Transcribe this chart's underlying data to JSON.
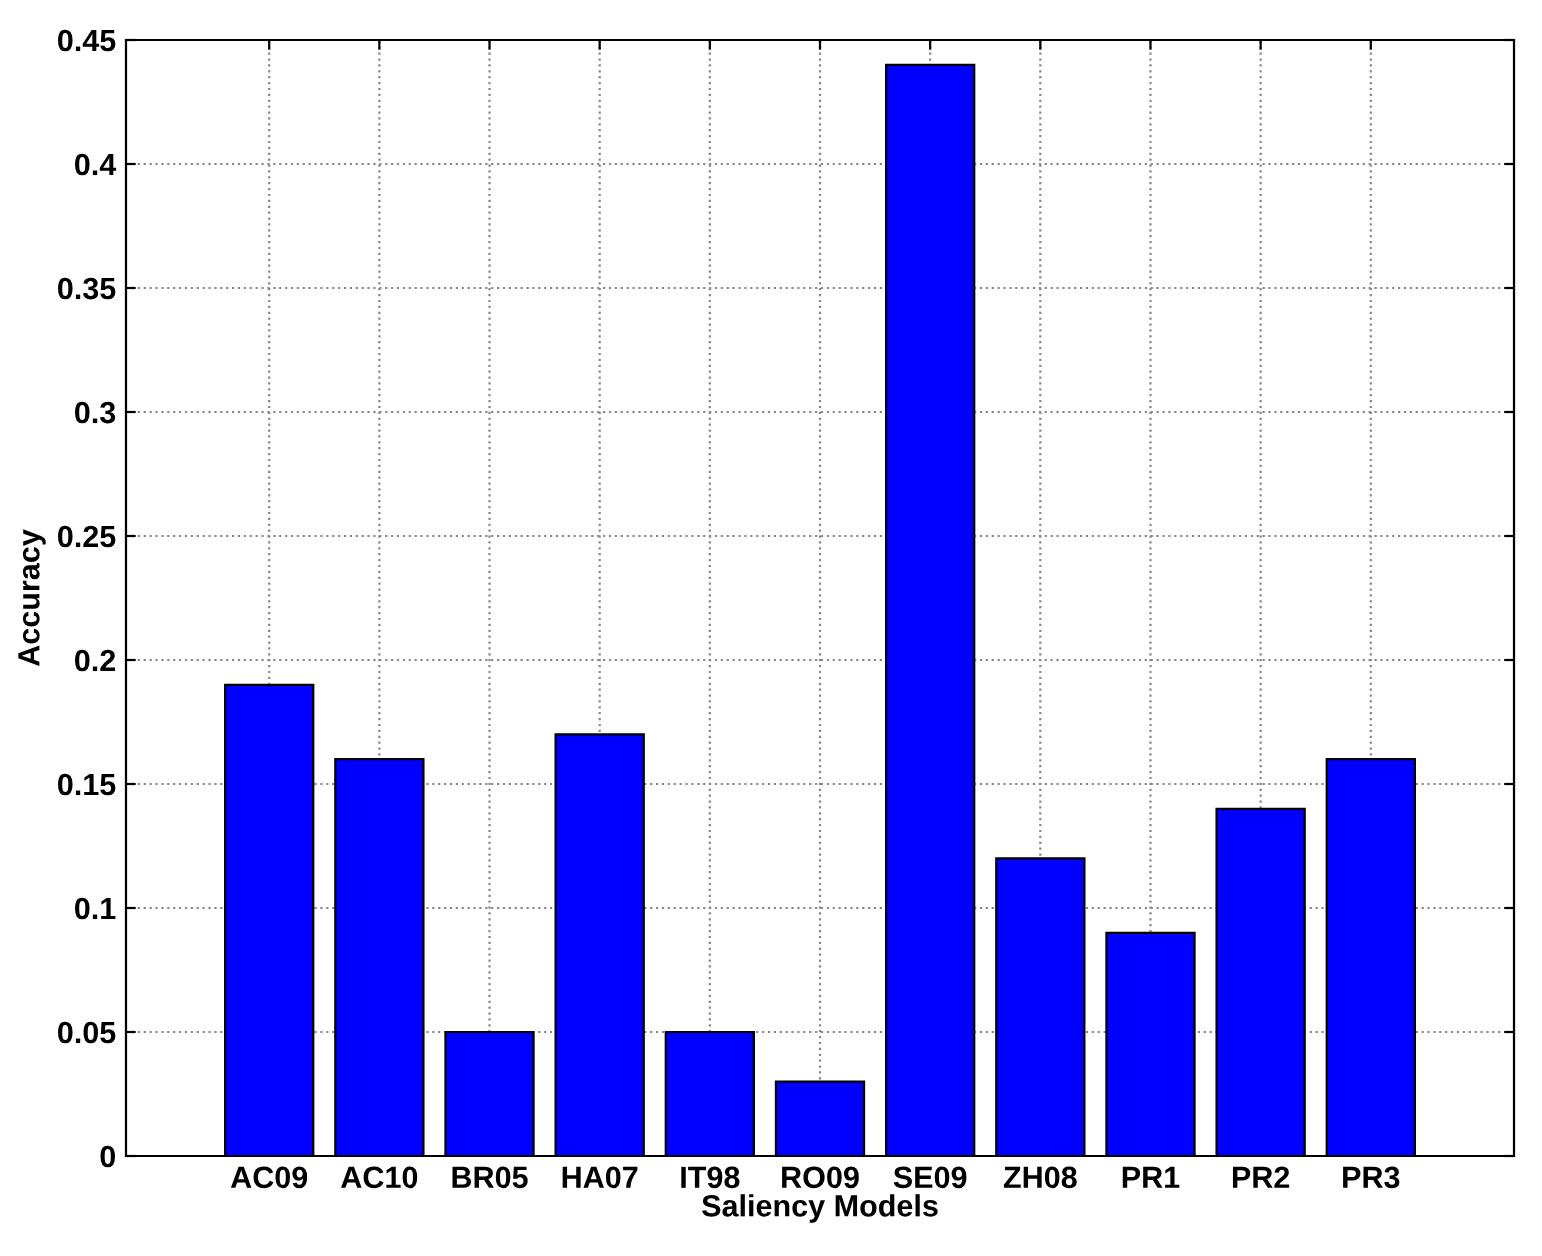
{
  "chart_data": {
    "type": "bar",
    "xlabel": "Saliency Models",
    "ylabel": "Accuracy",
    "categories": [
      "AC09",
      "AC10",
      "BR05",
      "HA07",
      "IT98",
      "RO09",
      "SE09",
      "ZH08",
      "PR1",
      "PR2",
      "PR3"
    ],
    "values": [
      0.19,
      0.16,
      0.05,
      0.17,
      0.05,
      0.03,
      0.44,
      0.12,
      0.09,
      0.14,
      0.16
    ],
    "color": "#0000ff",
    "ylim": [
      0,
      0.45
    ],
    "yticks": [
      0,
      0.05,
      0.1,
      0.15,
      0.2,
      0.25,
      0.3,
      0.35,
      0.4,
      0.45
    ],
    "grid": true
  }
}
